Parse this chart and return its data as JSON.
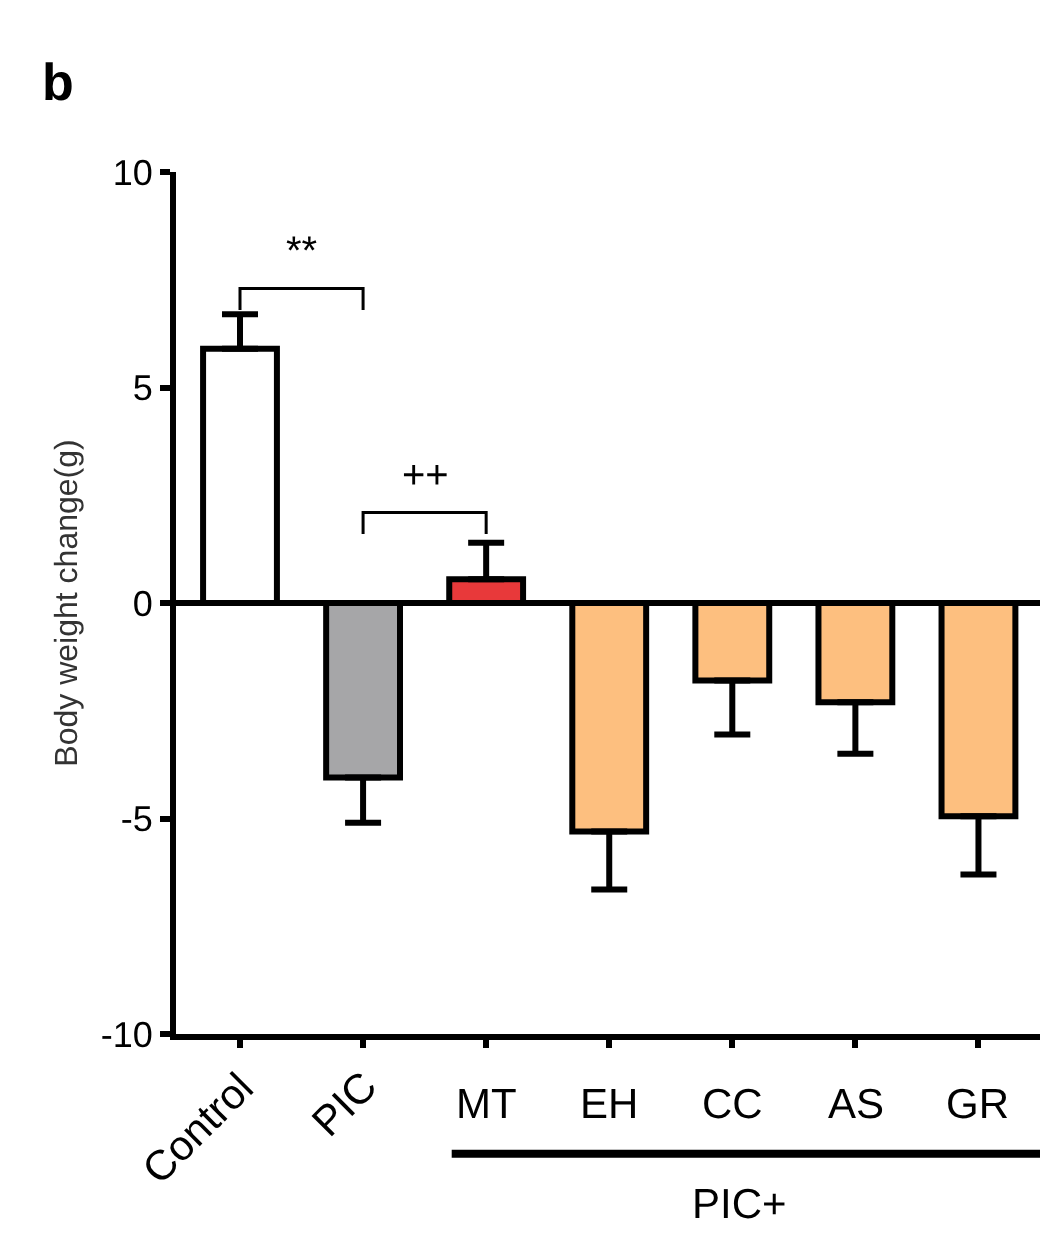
{
  "chart_data": {
    "type": "bar",
    "title": "b",
    "ylabel": "Body weight change(g)",
    "categories": [
      "Control",
      "PIC",
      "MT",
      "EH",
      "CC",
      "AS",
      "GR"
    ],
    "values": [
      5.9,
      -4.05,
      0.55,
      -5.3,
      -1.8,
      -2.3,
      -4.95
    ],
    "colors": [
      "#ffffff",
      "#a6a6a8",
      "#e8393a",
      "#fdbf7f",
      "#fdbf7f",
      "#fdbf7f",
      "#fdbf7f"
    ],
    "errors": [
      [
        5.9,
        6.7
      ],
      [
        -5.1,
        -4.05
      ],
      [
        0.55,
        1.4
      ],
      [
        -6.65,
        -5.3
      ],
      [
        -3.05,
        -1.8
      ],
      [
        -3.5,
        -2.3
      ],
      [
        -6.3,
        -4.95
      ]
    ],
    "ylim": [
      -10,
      10
    ],
    "yticks": [
      -10,
      -5,
      0,
      5,
      10
    ],
    "annotations": [
      "**",
      "++",
      "PIC+"
    ],
    "ref_lines": [
      {
        "axis": "y",
        "value": 0,
        "color": "#000000"
      }
    ],
    "legend": false
  }
}
